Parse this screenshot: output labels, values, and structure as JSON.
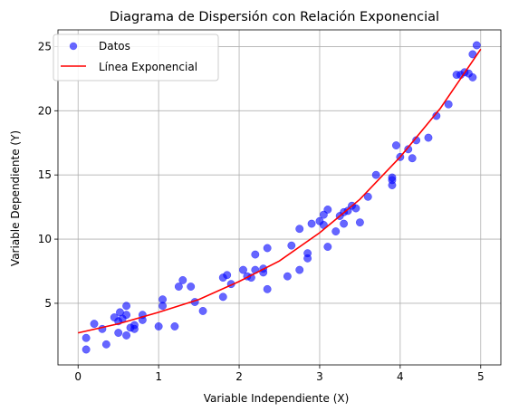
{
  "chart_data": {
    "type": "scatter",
    "title": "Diagrama de Dispersión con Relación Exponencial",
    "xlabel": "Variable Independiente (X)",
    "ylabel": "Variable Dependiente (Y)",
    "xlim": [
      -0.25,
      5.25
    ],
    "ylim": [
      0.2,
      26.3
    ],
    "xticks": [
      0,
      1,
      2,
      3,
      4,
      5
    ],
    "yticks": [
      5,
      10,
      15,
      20,
      25
    ],
    "grid": true,
    "legend_position": "top-left",
    "series": [
      {
        "name": "Datos",
        "kind": "scatter",
        "color": "#0000ff",
        "points": [
          [
            0.1,
            2.3
          ],
          [
            0.1,
            1.4
          ],
          [
            0.2,
            3.4
          ],
          [
            0.3,
            3.0
          ],
          [
            0.35,
            1.8
          ],
          [
            0.45,
            3.9
          ],
          [
            0.5,
            3.6
          ],
          [
            0.5,
            2.7
          ],
          [
            0.52,
            4.3
          ],
          [
            0.55,
            3.8
          ],
          [
            0.6,
            4.1
          ],
          [
            0.6,
            4.8
          ],
          [
            0.6,
            2.5
          ],
          [
            0.65,
            3.1
          ],
          [
            0.7,
            3.0
          ],
          [
            0.7,
            3.3
          ],
          [
            0.8,
            3.7
          ],
          [
            0.8,
            4.1
          ],
          [
            1.0,
            3.2
          ],
          [
            1.05,
            4.8
          ],
          [
            1.05,
            5.3
          ],
          [
            1.2,
            3.2
          ],
          [
            1.25,
            6.3
          ],
          [
            1.3,
            6.8
          ],
          [
            1.4,
            6.3
          ],
          [
            1.45,
            5.1
          ],
          [
            1.55,
            4.4
          ],
          [
            1.8,
            5.5
          ],
          [
            1.8,
            7.0
          ],
          [
            1.85,
            7.2
          ],
          [
            1.9,
            6.5
          ],
          [
            2.05,
            7.6
          ],
          [
            2.1,
            7.1
          ],
          [
            2.15,
            7.0
          ],
          [
            2.2,
            8.8
          ],
          [
            2.2,
            7.6
          ],
          [
            2.3,
            7.4
          ],
          [
            2.3,
            7.7
          ],
          [
            2.35,
            9.3
          ],
          [
            2.35,
            6.1
          ],
          [
            2.6,
            7.1
          ],
          [
            2.65,
            9.5
          ],
          [
            2.75,
            7.6
          ],
          [
            2.75,
            10.8
          ],
          [
            2.85,
            8.9
          ],
          [
            2.85,
            8.5
          ],
          [
            2.9,
            11.2
          ],
          [
            3.0,
            11.4
          ],
          [
            3.05,
            11.9
          ],
          [
            3.05,
            11.1
          ],
          [
            3.1,
            9.4
          ],
          [
            3.1,
            12.3
          ],
          [
            3.2,
            10.6
          ],
          [
            3.25,
            11.8
          ],
          [
            3.3,
            11.2
          ],
          [
            3.3,
            12.1
          ],
          [
            3.35,
            12.2
          ],
          [
            3.4,
            12.6
          ],
          [
            3.45,
            12.4
          ],
          [
            3.5,
            11.3
          ],
          [
            3.6,
            13.3
          ],
          [
            3.7,
            15.0
          ],
          [
            3.9,
            14.8
          ],
          [
            3.9,
            14.2
          ],
          [
            3.9,
            14.6
          ],
          [
            3.95,
            17.3
          ],
          [
            4.0,
            16.4
          ],
          [
            4.1,
            17.0
          ],
          [
            4.15,
            16.3
          ],
          [
            4.2,
            17.7
          ],
          [
            4.35,
            17.9
          ],
          [
            4.45,
            19.6
          ],
          [
            4.6,
            20.5
          ],
          [
            4.7,
            22.8
          ],
          [
            4.75,
            22.8
          ],
          [
            4.8,
            23.0
          ],
          [
            4.85,
            22.9
          ],
          [
            4.9,
            24.4
          ],
          [
            4.9,
            22.6
          ],
          [
            4.95,
            25.1
          ]
        ]
      },
      {
        "name": "Línea Exponencial",
        "kind": "line",
        "color": "#ff0000",
        "x": [
          0,
          0.5,
          1,
          1.5,
          2,
          2.5,
          3,
          3.5,
          4,
          4.5,
          5
        ],
        "y": [
          2.7,
          3.4,
          4.3,
          5.3,
          6.7,
          8.3,
          10.5,
          13.1,
          16.4,
          20.2,
          24.8
        ]
      }
    ]
  }
}
